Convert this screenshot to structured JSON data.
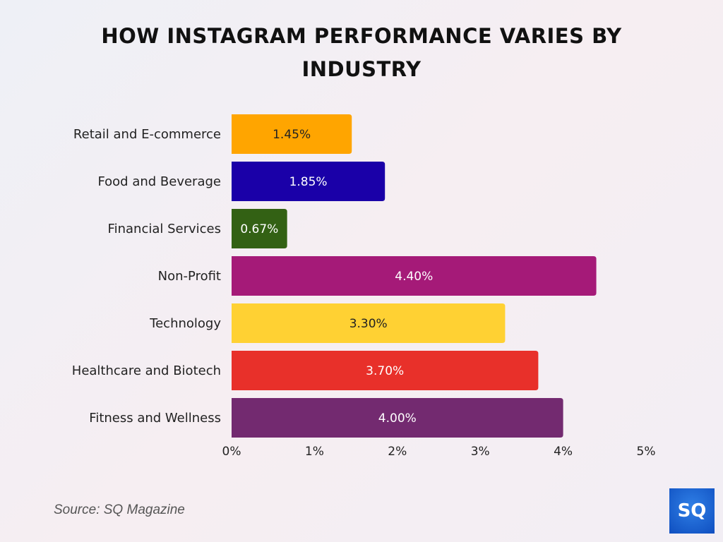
{
  "chart_data": {
    "type": "bar",
    "orientation": "horizontal",
    "title": "HOW INSTAGRAM PERFORMANCE VARIES BY INDUSTRY",
    "categories": [
      "Retail and E-commerce",
      "Food and Beverage",
      "Financial Services",
      "Non-Profit",
      "Technology",
      "Healthcare and Biotech",
      "Fitness and Wellness"
    ],
    "values": [
      1.45,
      1.85,
      0.67,
      4.4,
      3.3,
      3.7,
      4.0
    ],
    "data_labels": [
      "1.45%",
      "1.85%",
      "0.67%",
      "4.40%",
      "3.30%",
      "3.70%",
      "4.00%"
    ],
    "colors": [
      "#ffa500",
      "#1a00a8",
      "#336114",
      "#a51a78",
      "#ffd133",
      "#e8302a",
      "#732a70"
    ],
    "label_colors": [
      "#222222",
      "#ffffff",
      "#ffffff",
      "#ffffff",
      "#222222",
      "#ffffff",
      "#ffffff"
    ],
    "xlim": [
      0,
      5
    ],
    "xticks": [
      "0%",
      "1%",
      "2%",
      "3%",
      "4%",
      "5%"
    ],
    "xlabel": "",
    "ylabel": "",
    "grid": false,
    "legend": "none"
  },
  "source": "Source: SQ Magazine",
  "logo_text": "SQ"
}
